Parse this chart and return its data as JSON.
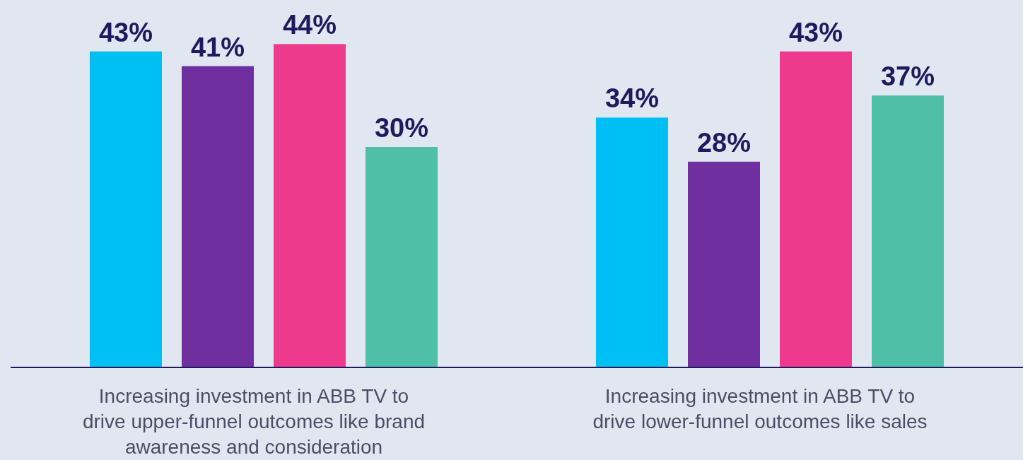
{
  "chart_data": {
    "type": "bar",
    "categories": [
      "Increasing investment in ABB TV to drive upper-funnel outcomes like brand awareness and consideration",
      "Increasing investment in ABB TV to drive lower-funnel outcomes like sales"
    ],
    "series": [
      {
        "color": "#00bff3",
        "values": [
          43,
          34
        ],
        "value_labels": [
          "43%",
          "34%"
        ]
      },
      {
        "color": "#6f2f9f",
        "values": [
          41,
          28
        ],
        "value_labels": [
          "41%",
          "28%"
        ]
      },
      {
        "color": "#ee3a8c",
        "values": [
          44,
          43
        ],
        "value_labels": [
          "44%",
          "43%"
        ]
      },
      {
        "color": "#4fbfa8",
        "values": [
          30,
          37
        ],
        "value_labels": [
          "30%",
          "37%"
        ]
      }
    ],
    "ylim": [
      0,
      50
    ]
  }
}
